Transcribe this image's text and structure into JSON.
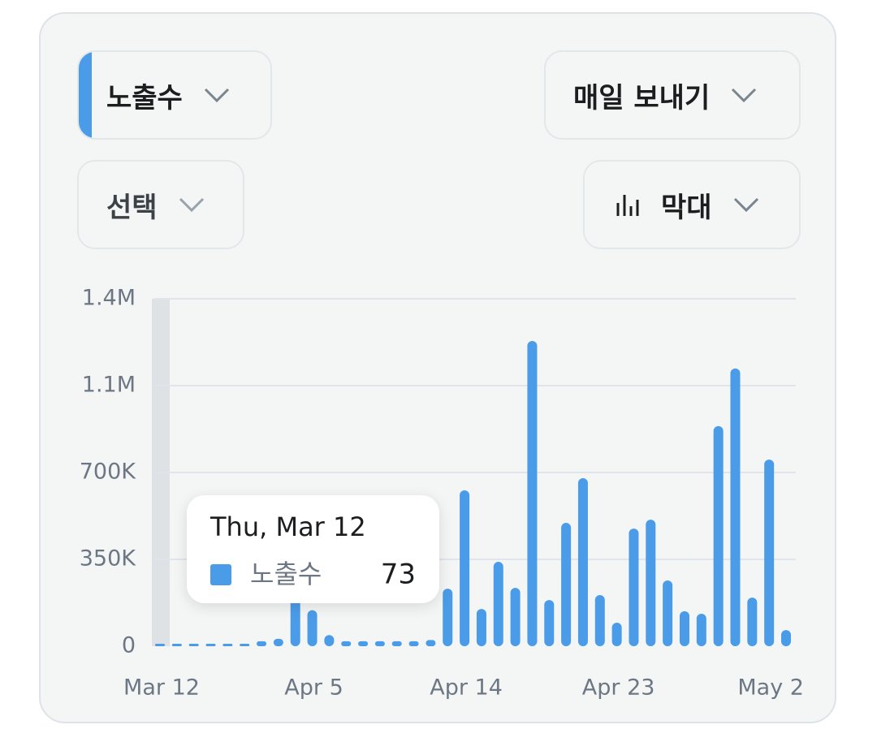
{
  "controls": {
    "metric": "노출수",
    "frequency": "매일 보내기",
    "select": "선택",
    "chart_type": "막대"
  },
  "chart_data": {
    "type": "bar",
    "categories": [
      "Mar 12",
      null,
      null,
      null,
      null,
      null,
      null,
      null,
      null,
      "Apr 5",
      null,
      null,
      null,
      null,
      null,
      null,
      null,
      null,
      "Apr 14",
      null,
      null,
      null,
      null,
      null,
      null,
      null,
      null,
      "Apr 23",
      null,
      null,
      null,
      null,
      null,
      null,
      null,
      null,
      "May 2",
      null
    ],
    "series": [
      {
        "name": "노출수",
        "color": "#4a9be8",
        "values": [
          73,
          1000,
          1000,
          1000,
          1000,
          2000,
          20000,
          30000,
          250000,
          145000,
          45000,
          20000,
          20000,
          20000,
          20000,
          20000,
          25000,
          232000,
          628000,
          150000,
          340000,
          235000,
          1230000,
          186000,
          497000,
          677000,
          206000,
          95000,
          474000,
          510000,
          265000,
          141000,
          131000,
          887000,
          1119000,
          196000,
          752000,
          65000
        ]
      }
    ],
    "ylim": [
      0,
      1400000
    ],
    "yticks": [
      0,
      {
        "value": 350000,
        "label": "350K"
      },
      {
        "value": 700000,
        "label": "700K"
      },
      {
        "value": 1050000,
        "label": "1.1M"
      },
      {
        "value": 1400000,
        "label": "1.4M"
      }
    ],
    "grid": true,
    "tooltip": {
      "title": "Thu, Mar 12"
    }
  }
}
